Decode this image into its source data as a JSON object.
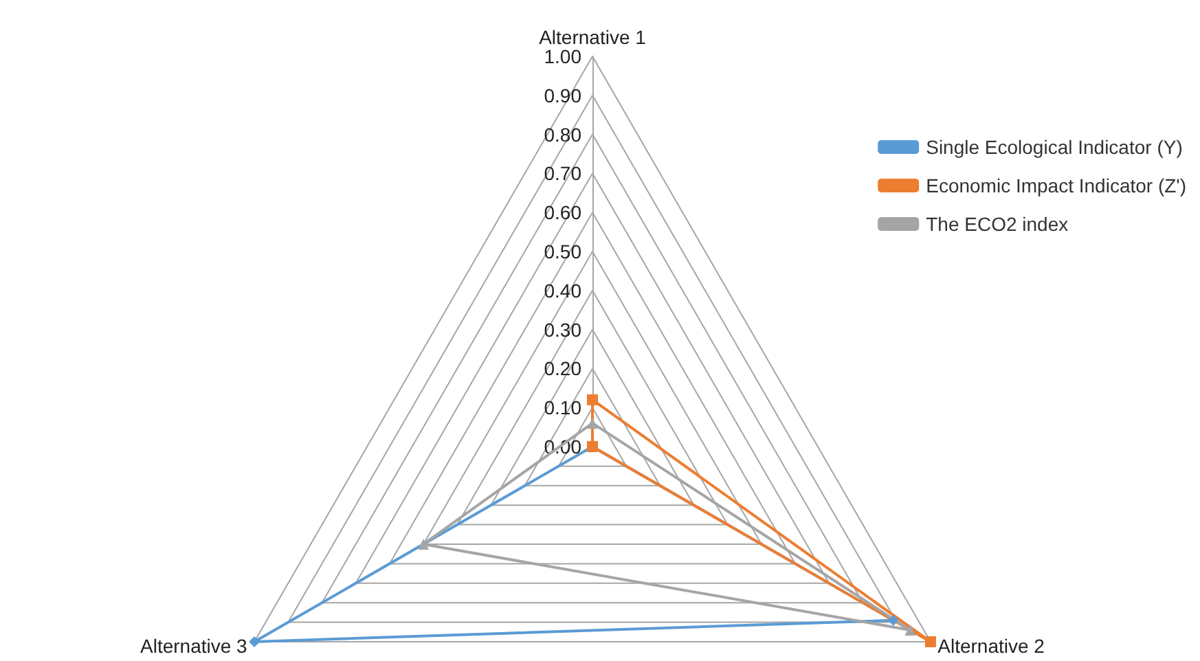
{
  "chart_data": {
    "type": "radar",
    "categories": [
      "Alternative 1",
      "Alternative 2",
      "Alternative 3"
    ],
    "series": [
      {
        "name": "Single Ecological Indicator (Y)",
        "color": "#5b9bd5",
        "marker": "diamond",
        "values": [
          0,
          0.89,
          1
        ]
      },
      {
        "name": "Economic Impact Indicator (Z')",
        "color": "#ed7d31",
        "marker": "square",
        "values": [
          0.12,
          1,
          0
        ]
      },
      {
        "name": "The ECO2 index",
        "color": "#a5a5a5",
        "marker": "triangle",
        "values": [
          0.06,
          0.94,
          0.5
        ]
      }
    ],
    "ylim": [
      0,
      1
    ],
    "yticks": [
      {
        "value": 0,
        "label": "0.00"
      },
      {
        "value": 0.1,
        "label": "0.10"
      },
      {
        "value": 0.2,
        "label": "0.20"
      },
      {
        "value": 0.3,
        "label": "0.30"
      },
      {
        "value": 0.4,
        "label": "0.40"
      },
      {
        "value": 0.5,
        "label": "0.50"
      },
      {
        "value": 0.6,
        "label": "0.60"
      },
      {
        "value": 0.7,
        "label": "0.70"
      },
      {
        "value": 0.8,
        "label": "0.80"
      },
      {
        "value": 0.9,
        "label": "0.90"
      },
      {
        "value": 1,
        "label": "1.00"
      }
    ],
    "grid": true,
    "legend": "top right",
    "line_style": "solid"
  }
}
